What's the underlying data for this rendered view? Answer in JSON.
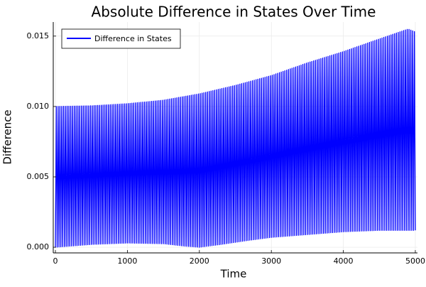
{
  "chart_data": {
    "type": "line",
    "title": "Absolute Difference in States Over Time",
    "xlabel": "Time",
    "ylabel": "Difference",
    "xlim": [
      -30,
      5030
    ],
    "ylim": [
      -0.0004,
      0.016
    ],
    "xticks": [
      0,
      1000,
      2000,
      3000,
      4000,
      5000
    ],
    "xtick_labels": [
      "0",
      "1000",
      "2000",
      "3000",
      "4000",
      "5000"
    ],
    "yticks": [
      0.0,
      0.005,
      0.01,
      0.015
    ],
    "ytick_labels": [
      "0.000",
      "0.005",
      "0.010",
      "0.015"
    ],
    "grid": true,
    "legend": {
      "position": "top-left",
      "entries": [
        "Difference in States"
      ]
    },
    "series": [
      {
        "name": "Difference in States",
        "color": "#0000ff",
        "style": "oscillating",
        "x_range": [
          0,
          5000
        ],
        "cycles": 200,
        "upper_envelope": {
          "x": [
            0,
            500,
            1000,
            1500,
            2000,
            2500,
            3000,
            3500,
            4000,
            4500,
            4900,
            5000
          ],
          "y": [
            0.01,
            0.01005,
            0.0102,
            0.01045,
            0.0109,
            0.0115,
            0.0122,
            0.0131,
            0.0139,
            0.0148,
            0.0155,
            0.0153
          ]
        },
        "lower_envelope": {
          "x": [
            0,
            500,
            1000,
            1500,
            1800,
            2000,
            2300,
            2700,
            3000,
            3500,
            4000,
            4500,
            4800,
            5000
          ],
          "y": [
            0.0,
            0.0002,
            0.0003,
            0.00025,
            8e-05,
            0.0,
            0.0002,
            0.0005,
            0.0007,
            0.0009,
            0.0011,
            0.0012,
            0.0012,
            0.0012
          ]
        }
      }
    ]
  }
}
